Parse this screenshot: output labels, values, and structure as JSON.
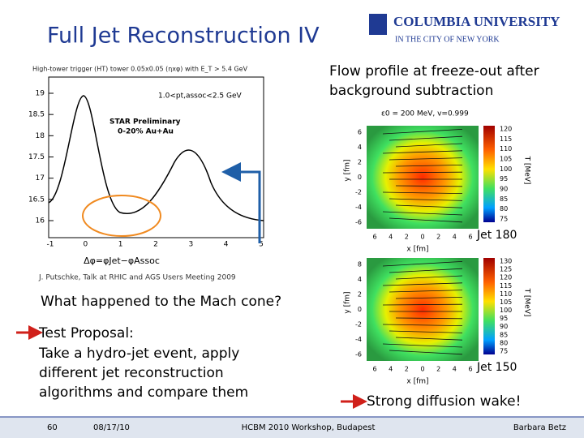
{
  "header": {
    "title": "Full Jet Reconstruction IV",
    "logo": {
      "name": "COLUMBIA UNIVERSITY",
      "subtitle": "IN THE CITY OF NEW YORK"
    }
  },
  "left_plot": {
    "caption": "High-tower trigger (HT) tower 0.05x0.05 (ηxφ) with E_T > 5.4 GeV",
    "y_ticks": [
      "19",
      "18.5",
      "18",
      "17.5",
      "17",
      "16.5",
      "16"
    ],
    "x_ticks": [
      "-1",
      "0",
      "1",
      "2",
      "3",
      "4",
      "5"
    ],
    "range_label": "1.0<pt,assoc<2.5 GeV",
    "label1": "STAR Preliminary",
    "label2": "0-20% Au+Au",
    "x_label": "Δφ=φJet−φAssoc",
    "credit": "J. Putschke, Talk at RHIC and AGS Users Meeting 2009"
  },
  "right": {
    "heading": "Flow profile at freeze-out after background subtraction",
    "panels": [
      {
        "title": "ε0 = 200 MeV, v=0.999",
        "y_label": "y [fm]",
        "x_label": "x [fm]",
        "y_ticks": [
          "6",
          "4",
          "2",
          "0",
          "-2",
          "-4",
          "-6"
        ],
        "x_ticks": [
          "6",
          "4",
          "2",
          "0",
          "2",
          "4",
          "6"
        ],
        "colorbar_ticks": [
          "120",
          "115",
          "110",
          "105",
          "100",
          "95",
          "90",
          "85",
          "80",
          "75"
        ],
        "colorbar_label": "T [MeV]",
        "caption": "Jet 180"
      },
      {
        "y_label": "y [fm]",
        "x_label": "x [fm]",
        "y_ticks": [
          "8",
          "4",
          "2",
          "0",
          "-2",
          "-4",
          "-6"
        ],
        "x_ticks": [
          "6",
          "4",
          "2",
          "0",
          "2",
          "4",
          "6"
        ],
        "colorbar_ticks": [
          "130",
          "125",
          "120",
          "115",
          "110",
          "105",
          "100",
          "95",
          "90",
          "85",
          "80",
          "75"
        ],
        "colorbar_label": "T [MeV]",
        "caption": "Jet 150"
      }
    ]
  },
  "body": {
    "question": "What happened to the Mach cone?",
    "proposal_title": "Test Proposal:",
    "proposal_text": "Take a hydro-jet event, apply different jet reconstruction algorithms and compare them",
    "wake": "Strong diffusion wake!"
  },
  "footer": {
    "page": "60",
    "date": "08/17/10",
    "event": "HCBM 2010 Workshop, Budapest",
    "author": "Barbara Betz"
  }
}
